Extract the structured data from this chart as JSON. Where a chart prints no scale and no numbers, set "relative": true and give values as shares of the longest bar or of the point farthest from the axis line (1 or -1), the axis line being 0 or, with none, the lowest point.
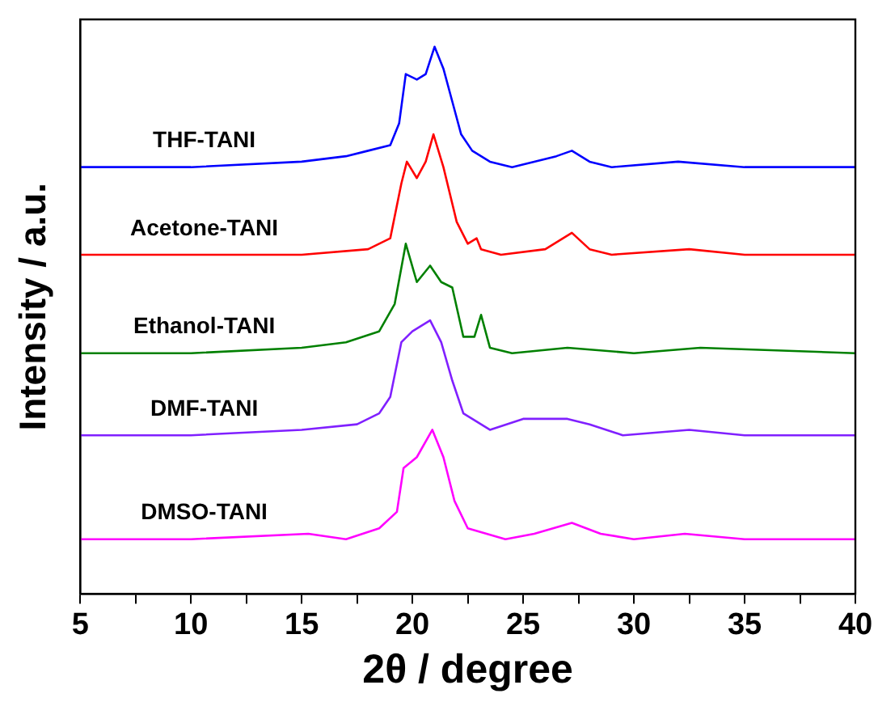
{
  "chart_data": {
    "type": "line",
    "relative": true,
    "xlabel": "2θ / degree",
    "ylabel": "Intensity / a.u.",
    "xlim": [
      5,
      40
    ],
    "xticks": [
      5,
      {
        "value": 7.5,
        "label": null
      },
      10,
      {
        "value": 12.5,
        "label": null
      },
      15,
      {
        "value": 17.5,
        "label": null
      },
      20,
      {
        "value": 22.5,
        "label": null
      },
      25,
      {
        "value": 27.5,
        "label": null
      },
      30,
      {
        "value": 32.5,
        "label": null
      },
      35,
      {
        "value": 37.5,
        "label": null
      },
      40
    ],
    "marker": "none",
    "legend": false,
    "series": [
      {
        "name": "THF-TANI",
        "color": "#0000ff",
        "x": [
          5,
          10,
          15,
          17,
          18,
          19,
          19.4,
          19.7,
          20.2,
          20.6,
          21,
          21.4,
          21.8,
          22.2,
          22.7,
          23.5,
          24.5,
          25.5,
          26.5,
          27.2,
          28,
          29,
          32,
          35,
          40
        ],
        "values": [
          0.78,
          0.78,
          0.79,
          0.8,
          0.81,
          0.82,
          0.86,
          0.95,
          0.94,
          0.95,
          1,
          0.96,
          0.9,
          0.84,
          0.81,
          0.79,
          0.78,
          0.79,
          0.8,
          0.81,
          0.79,
          0.78,
          0.79,
          0.78,
          0.78
        ]
      },
      {
        "name": "Acetone-TANI",
        "color": "#ff0000",
        "x": [
          5,
          10,
          15,
          18,
          19,
          19.5,
          19.75,
          20.2,
          20.6,
          20.95,
          21.4,
          22,
          22.5,
          22.9,
          23.1,
          24,
          26,
          27.2,
          28,
          29,
          32.5,
          35,
          40
        ],
        "values": [
          0.62,
          0.62,
          0.62,
          0.63,
          0.65,
          0.75,
          0.79,
          0.76,
          0.79,
          0.84,
          0.78,
          0.68,
          0.64,
          0.65,
          0.63,
          0.62,
          0.63,
          0.66,
          0.63,
          0.62,
          0.63,
          0.62,
          0.62
        ]
      },
      {
        "name": "Ethanol-TANI",
        "color": "#008000",
        "x": [
          5,
          10,
          15,
          17,
          18.5,
          19.2,
          19.7,
          20.2,
          20.8,
          21.3,
          21.8,
          22.3,
          22.8,
          23.1,
          23.5,
          24.5,
          27,
          30,
          33,
          40
        ],
        "values": [
          0.44,
          0.44,
          0.45,
          0.46,
          0.48,
          0.53,
          0.64,
          0.57,
          0.6,
          0.57,
          0.56,
          0.47,
          0.47,
          0.51,
          0.45,
          0.44,
          0.45,
          0.44,
          0.45,
          0.44
        ]
      },
      {
        "name": "DMF-TANI",
        "color": "#8020ff",
        "x": [
          5,
          10,
          15,
          17.5,
          18.5,
          19,
          19.5,
          20,
          20.8,
          21.3,
          21.8,
          22.3,
          23.5,
          25,
          27,
          28,
          29.5,
          32.5,
          35,
          40
        ],
        "values": [
          0.29,
          0.29,
          0.3,
          0.31,
          0.33,
          0.36,
          0.46,
          0.48,
          0.5,
          0.46,
          0.39,
          0.33,
          0.3,
          0.32,
          0.32,
          0.31,
          0.29,
          0.3,
          0.29,
          0.29
        ]
      },
      {
        "name": "DMSO-TANI",
        "color": "#ff00ff",
        "x": [
          5,
          10,
          15.3,
          17,
          18.5,
          19.3,
          19.6,
          20.2,
          20.9,
          21.4,
          21.9,
          22.5,
          24.2,
          25.5,
          27.2,
          28.5,
          30,
          32.3,
          35,
          40
        ],
        "values": [
          0.1,
          0.1,
          0.11,
          0.1,
          0.12,
          0.15,
          0.23,
          0.25,
          0.3,
          0.25,
          0.17,
          0.12,
          0.1,
          0.11,
          0.13,
          0.11,
          0.1,
          0.11,
          0.1,
          0.1
        ]
      }
    ]
  }
}
